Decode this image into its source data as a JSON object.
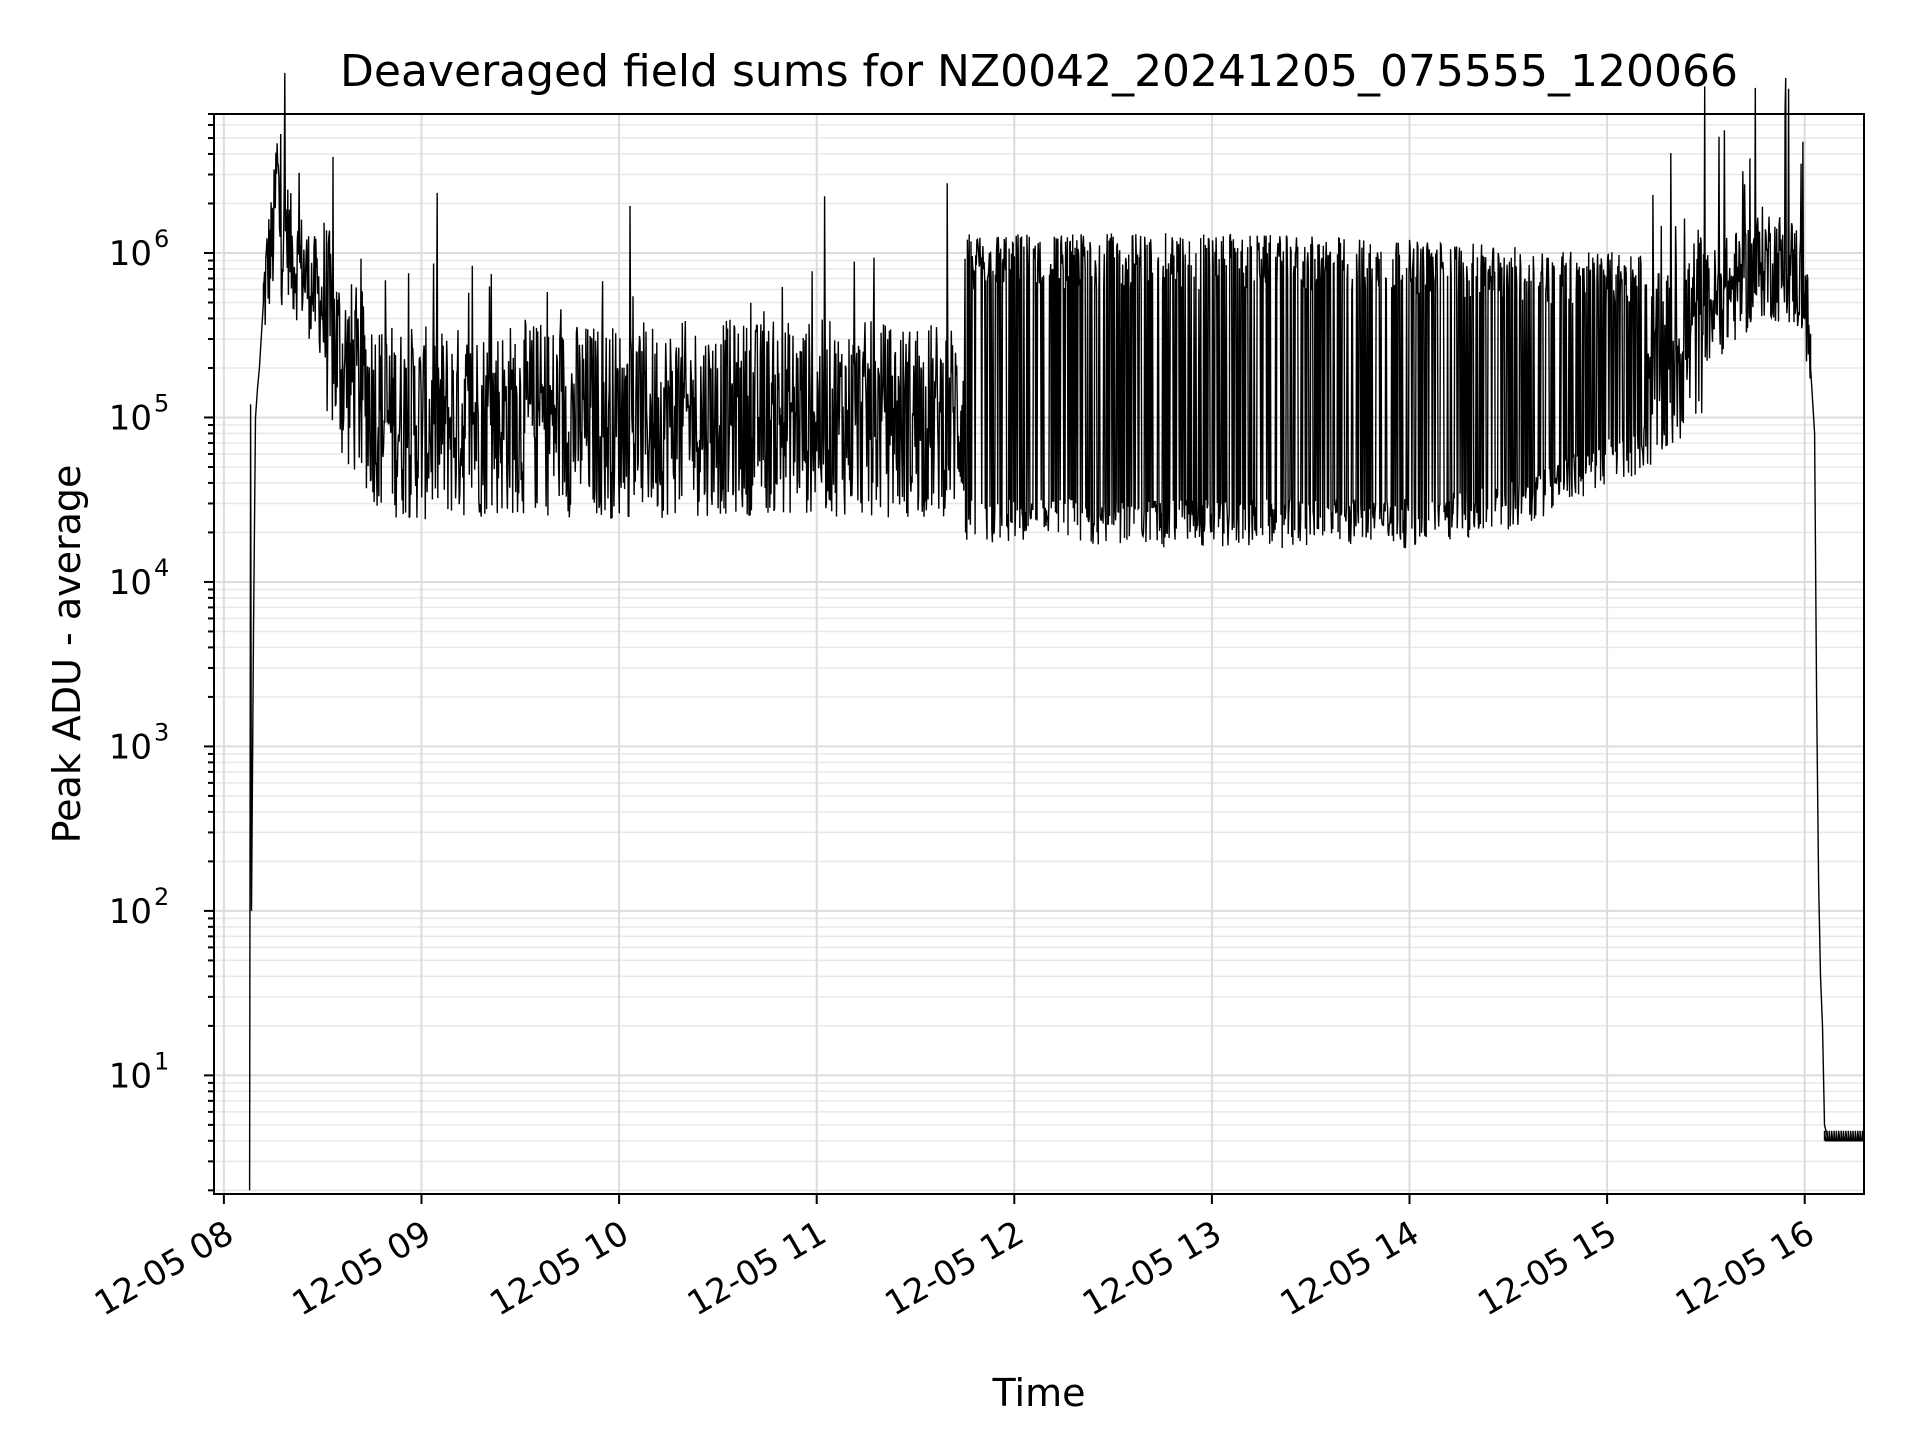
{
  "chart_data": {
    "type": "line",
    "title": "Deaveraged field sums for NZ0042_20241205_075555_120066",
    "xlabel": "Time",
    "ylabel": "Peak ADU - average",
    "yscale": "log",
    "x_unit": "hour of 2024-12-05",
    "xlim": [
      7.95,
      16.3
    ],
    "ylim": [
      1.9,
      7000000
    ],
    "grid": "on (major and minor)",
    "x_ticks": [
      {
        "label": "12-05 08",
        "value": 8
      },
      {
        "label": "12-05 09",
        "value": 9
      },
      {
        "label": "12-05 10",
        "value": 10
      },
      {
        "label": "12-05 11",
        "value": 11
      },
      {
        "label": "12-05 12",
        "value": 12
      },
      {
        "label": "12-05 13",
        "value": 13
      },
      {
        "label": "12-05 14",
        "value": 14
      },
      {
        "label": "12-05 15",
        "value": 15
      },
      {
        "label": "12-05 16",
        "value": 16
      }
    ],
    "y_ticks": [
      {
        "base": "10",
        "exp": "1",
        "value": 10
      },
      {
        "base": "10",
        "exp": "2",
        "value": 100
      },
      {
        "base": "10",
        "exp": "3",
        "value": 1000
      },
      {
        "base": "10",
        "exp": "4",
        "value": 10000
      },
      {
        "base": "10",
        "exp": "5",
        "value": 100000
      },
      {
        "base": "10",
        "exp": "6",
        "value": 1000000
      }
    ],
    "series": [
      {
        "color": "#000000",
        "description_points": "approximate envelope of the jagged signal",
        "x": [
          8.13,
          8.135,
          8.14,
          8.15,
          8.16,
          8.17,
          8.18,
          8.2,
          8.22,
          8.25,
          8.27,
          8.29,
          8.31,
          8.35,
          8.4,
          8.45,
          8.5,
          8.55,
          8.6,
          8.7,
          8.8,
          9.0,
          9.5,
          10.0,
          10.5,
          11.0,
          11.5,
          11.7,
          11.75,
          12.0,
          12.5,
          13.0,
          13.5,
          14.0,
          14.5,
          15.0,
          15.3,
          15.5,
          15.7,
          15.8,
          15.9,
          15.95,
          16.0,
          16.03,
          16.05,
          16.06,
          16.07,
          16.08,
          16.09,
          16.1,
          16.12,
          16.2,
          16.3
        ],
        "y": [
          2,
          120000,
          100,
          5000,
          100000,
          150000,
          200000,
          500000,
          800000,
          1200000,
          3500000,
          1000000,
          1500000,
          900000,
          800000,
          600000,
          500000,
          300000,
          200000,
          150000,
          100000,
          90000,
          100000,
          95000,
          100000,
          100000,
          95000,
          100000,
          120000,
          140000,
          160000,
          170000,
          160000,
          150000,
          140000,
          130000,
          200000,
          450000,
          700000,
          900000,
          800000,
          750000,
          600000,
          200000,
          80000,
          2000,
          150,
          40,
          20,
          5,
          4,
          4,
          4
        ],
        "band_low": [
          20000,
          20000,
          20000,
          20000,
          20000,
          25000,
          60000
        ],
        "band_high": [
          1200000,
          1200000,
          1200000,
          1150000,
          1100000,
          1000000,
          900000
        ],
        "band_x": [
          11.75,
          12.5,
          13.0,
          13.5,
          14.0,
          14.5,
          15.2
        ]
      }
    ]
  }
}
